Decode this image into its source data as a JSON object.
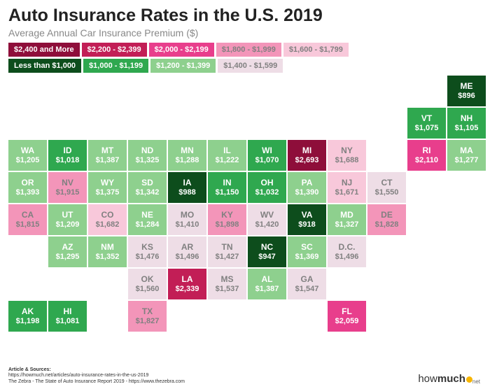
{
  "title": "Auto Insurance Rates in the U.S. 2019",
  "subtitle": "Average Annual Car Insurance Premium ($)",
  "cell": {
    "w": 55,
    "h": 44,
    "gap": 2
  },
  "layout": {
    "cols": 12,
    "rows": 9
  },
  "palette": {
    "b0": {
      "bg": "#8e0e3a",
      "fg": "#ffffff"
    },
    "b1": {
      "bg": "#c21e56",
      "fg": "#ffffff"
    },
    "b2": {
      "bg": "#e83e8c",
      "fg": "#ffffff"
    },
    "b3": {
      "bg": "#f395b9",
      "fg": "#808080"
    },
    "b4": {
      "bg": "#f8c8da",
      "fg": "#808080"
    },
    "b5": {
      "bg": "#eedde6",
      "fg": "#808080"
    },
    "b6": {
      "bg": "#c5e8c5",
      "fg": "#808080"
    },
    "b7": {
      "bg": "#8ed08e",
      "fg": "#ffffff"
    },
    "b8": {
      "bg": "#2fa84f",
      "fg": "#ffffff"
    },
    "b9": {
      "bg": "#0d4d1c",
      "fg": "#ffffff"
    }
  },
  "legend": [
    {
      "label": "$2,400 and More",
      "band": "b0"
    },
    {
      "label": "$2,200 - $2,399",
      "band": "b1"
    },
    {
      "label": "$2,000 - $2,199",
      "band": "b2"
    },
    {
      "label": "$1,800 - $1,999",
      "band": "b3"
    },
    {
      "label": "$1,600 - $1,799",
      "band": "b4"
    },
    {
      "label": "Less than $1,000",
      "band": "b9"
    },
    {
      "label": "$1,000 - $1,199",
      "band": "b8"
    },
    {
      "label": "$1,200 - $1,399",
      "band": "b7"
    },
    {
      "label": "$1,400 - $1,599",
      "band": "b5"
    }
  ],
  "states": [
    {
      "abbr": "ME",
      "value": "$896",
      "band": "b9",
      "col": 11,
      "row": 0
    },
    {
      "abbr": "VT",
      "value": "$1,075",
      "band": "b8",
      "col": 10,
      "row": 1
    },
    {
      "abbr": "NH",
      "value": "$1,105",
      "band": "b8",
      "col": 11,
      "row": 1
    },
    {
      "abbr": "WA",
      "value": "$1,205",
      "band": "b7",
      "col": 0,
      "row": 2
    },
    {
      "abbr": "ID",
      "value": "$1,018",
      "band": "b8",
      "col": 1,
      "row": 2
    },
    {
      "abbr": "MT",
      "value": "$1,387",
      "band": "b7",
      "col": 2,
      "row": 2
    },
    {
      "abbr": "ND",
      "value": "$1,325",
      "band": "b7",
      "col": 3,
      "row": 2
    },
    {
      "abbr": "MN",
      "value": "$1,288",
      "band": "b7",
      "col": 4,
      "row": 2
    },
    {
      "abbr": "IL",
      "value": "$1,222",
      "band": "b7",
      "col": 5,
      "row": 2
    },
    {
      "abbr": "WI",
      "value": "$1,070",
      "band": "b8",
      "col": 6,
      "row": 2
    },
    {
      "abbr": "MI",
      "value": "$2,693",
      "band": "b0",
      "col": 7,
      "row": 2
    },
    {
      "abbr": "NY",
      "value": "$1,688",
      "band": "b4",
      "col": 8,
      "row": 2
    },
    {
      "abbr": "RI",
      "value": "$2,110",
      "band": "b2",
      "col": 10,
      "row": 2
    },
    {
      "abbr": "MA",
      "value": "$1,277",
      "band": "b7",
      "col": 11,
      "row": 2
    },
    {
      "abbr": "OR",
      "value": "$1,393",
      "band": "b7",
      "col": 0,
      "row": 3
    },
    {
      "abbr": "NV",
      "value": "$1,915",
      "band": "b3",
      "col": 1,
      "row": 3
    },
    {
      "abbr": "WY",
      "value": "$1,375",
      "band": "b7",
      "col": 2,
      "row": 3
    },
    {
      "abbr": "SD",
      "value": "$1,342",
      "band": "b7",
      "col": 3,
      "row": 3
    },
    {
      "abbr": "IA",
      "value": "$988",
      "band": "b9",
      "col": 4,
      "row": 3
    },
    {
      "abbr": "IN",
      "value": "$1,150",
      "band": "b8",
      "col": 5,
      "row": 3
    },
    {
      "abbr": "OH",
      "value": "$1,032",
      "band": "b8",
      "col": 6,
      "row": 3
    },
    {
      "abbr": "PA",
      "value": "$1,390",
      "band": "b7",
      "col": 7,
      "row": 3
    },
    {
      "abbr": "NJ",
      "value": "$1,671",
      "band": "b4",
      "col": 8,
      "row": 3
    },
    {
      "abbr": "CT",
      "value": "$1,550",
      "band": "b5",
      "col": 9,
      "row": 3
    },
    {
      "abbr": "CA",
      "value": "$1,815",
      "band": "b3",
      "col": 0,
      "row": 4
    },
    {
      "abbr": "UT",
      "value": "$1,209",
      "band": "b7",
      "col": 1,
      "row": 4
    },
    {
      "abbr": "CO",
      "value": "$1,682",
      "band": "b4",
      "col": 2,
      "row": 4
    },
    {
      "abbr": "NE",
      "value": "$1,284",
      "band": "b7",
      "col": 3,
      "row": 4
    },
    {
      "abbr": "MO",
      "value": "$1,410",
      "band": "b5",
      "col": 4,
      "row": 4
    },
    {
      "abbr": "KY",
      "value": "$1,898",
      "band": "b3",
      "col": 5,
      "row": 4
    },
    {
      "abbr": "WV",
      "value": "$1,420",
      "band": "b5",
      "col": 6,
      "row": 4
    },
    {
      "abbr": "VA",
      "value": "$918",
      "band": "b9",
      "col": 7,
      "row": 4
    },
    {
      "abbr": "MD",
      "value": "$1,327",
      "band": "b7",
      "col": 8,
      "row": 4
    },
    {
      "abbr": "DE",
      "value": "$1,828",
      "band": "b3",
      "col": 9,
      "row": 4
    },
    {
      "abbr": "AZ",
      "value": "$1,295",
      "band": "b7",
      "col": 1,
      "row": 5
    },
    {
      "abbr": "NM",
      "value": "$1,352",
      "band": "b7",
      "col": 2,
      "row": 5
    },
    {
      "abbr": "KS",
      "value": "$1,476",
      "band": "b5",
      "col": 3,
      "row": 5
    },
    {
      "abbr": "AR",
      "value": "$1,496",
      "band": "b5",
      "col": 4,
      "row": 5
    },
    {
      "abbr": "TN",
      "value": "$1,427",
      "band": "b5",
      "col": 5,
      "row": 5
    },
    {
      "abbr": "NC",
      "value": "$947",
      "band": "b9",
      "col": 6,
      "row": 5
    },
    {
      "abbr": "SC",
      "value": "$1,369",
      "band": "b7",
      "col": 7,
      "row": 5
    },
    {
      "abbr": "D.C.",
      "value": "$1,496",
      "band": "b5",
      "col": 8,
      "row": 5
    },
    {
      "abbr": "OK",
      "value": "$1,560",
      "band": "b5",
      "col": 3,
      "row": 6
    },
    {
      "abbr": "LA",
      "value": "$2,339",
      "band": "b1",
      "col": 4,
      "row": 6
    },
    {
      "abbr": "MS",
      "value": "$1,537",
      "band": "b5",
      "col": 5,
      "row": 6
    },
    {
      "abbr": "AL",
      "value": "$1,387",
      "band": "b7",
      "col": 6,
      "row": 6
    },
    {
      "abbr": "GA",
      "value": "$1,547",
      "band": "b5",
      "col": 7,
      "row": 6
    },
    {
      "abbr": "AK",
      "value": "$1,198",
      "band": "b8",
      "col": 0,
      "row": 7
    },
    {
      "abbr": "HI",
      "value": "$1,081",
      "band": "b8",
      "col": 1,
      "row": 7
    },
    {
      "abbr": "TX",
      "value": "$1,827",
      "band": "b3",
      "col": 3,
      "row": 7
    },
    {
      "abbr": "FL",
      "value": "$2,059",
      "band": "b2",
      "col": 8,
      "row": 7
    }
  ],
  "sources": {
    "heading": "Article & Sources:",
    "line1": "https://howmuch.net/articles/auto-insurance-rates-in-the-us-2019",
    "line2": "The Zebra - The State of Auto Insurance Report 2019 - https://www.thezebra.com"
  },
  "logo": {
    "part1": "how",
    "part2": "much",
    "suffix": "net"
  }
}
